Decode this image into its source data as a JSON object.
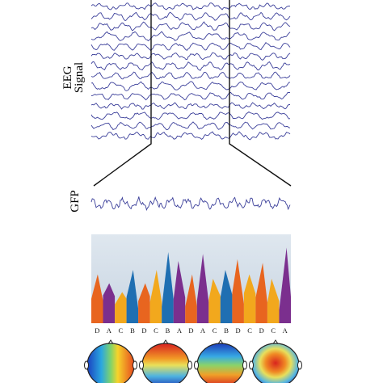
{
  "eeg_label_line1": "EEG",
  "eeg_label_line2": "Signal",
  "gfp_label": "GFP",
  "microstate_labels": [
    "D",
    "A",
    "C",
    "B",
    "D",
    "C",
    "B",
    "A",
    "D",
    "A",
    "C",
    "B",
    "D",
    "C",
    "D",
    "C",
    "A"
  ],
  "colors": {
    "A": "#7b2f8e",
    "B": "#1f6fb2",
    "C": "#f2a81d",
    "D": "#e8651f",
    "trace": "#3b3f9a",
    "background_gradient_top": "#dfe7ef",
    "background_gradient_bottom": "#c8d5e2"
  },
  "topomaps": [
    {
      "name": "map-1",
      "pattern": "blue-left-red-right"
    },
    {
      "name": "map-2",
      "pattern": "red-top-blue-bottom"
    },
    {
      "name": "map-3",
      "pattern": "blue-top-red-bottom"
    },
    {
      "name": "map-4",
      "pattern": "red-center-blue-ring"
    }
  ]
}
